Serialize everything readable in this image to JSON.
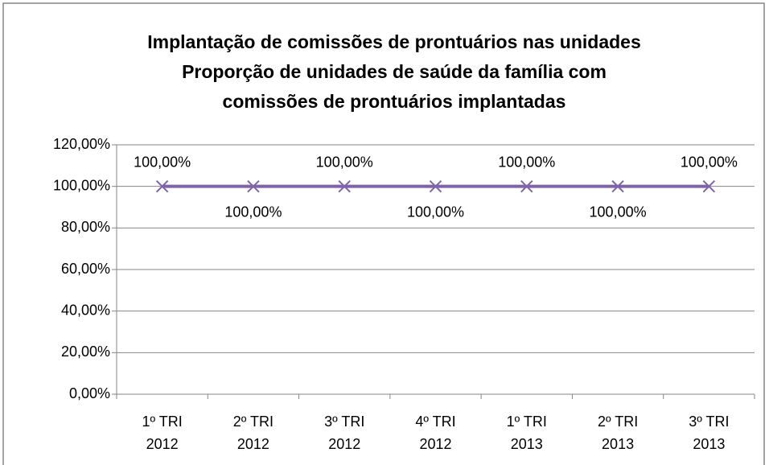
{
  "chart_data": {
    "type": "line",
    "title": [
      "Implantação de comissões de prontuários nas unidades",
      "Proporção de unidades de saúde da família com",
      "comissões de prontuários implantadas"
    ],
    "categories": [
      [
        "1º TRI",
        "2012"
      ],
      [
        "2º TRI",
        "2012"
      ],
      [
        "3º TRI",
        "2012"
      ],
      [
        "4º TRI",
        "2012"
      ],
      [
        "1º TRI",
        "2013"
      ],
      [
        "2º TRI",
        "2013"
      ],
      [
        "3º TRI",
        "2013"
      ]
    ],
    "series": [
      {
        "color": "#7f63a8",
        "values": [
          100,
          100,
          100,
          100,
          100,
          100,
          100
        ],
        "value_labels": [
          "100,00%",
          "100,00%",
          "100,00%",
          "100,00%",
          "100,00%",
          "100,00%",
          "100,00%"
        ]
      }
    ],
    "ylim": [
      0,
      120
    ],
    "yticks": [
      {
        "value": 0,
        "label": "0,00%"
      },
      {
        "value": 20,
        "label": "20,00%"
      },
      {
        "value": 40,
        "label": "40,00%"
      },
      {
        "value": 60,
        "label": "60,00%"
      },
      {
        "value": 80,
        "label": "80,00%"
      },
      {
        "value": 100,
        "label": "100,00%"
      },
      {
        "value": 120,
        "label": "120,00%"
      }
    ],
    "grid": true,
    "marker": "x"
  }
}
